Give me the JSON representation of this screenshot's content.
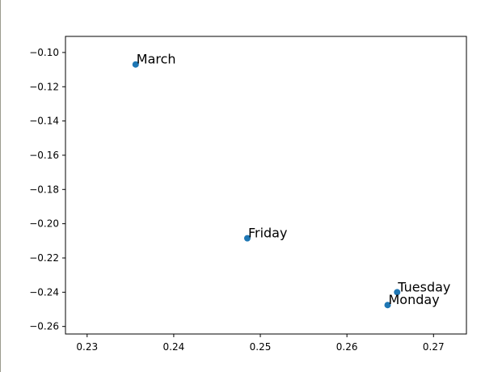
{
  "chart_data": {
    "type": "scatter",
    "title": "",
    "xlabel": "",
    "ylabel": "",
    "xlim": [
      0.2275,
      0.2738
    ],
    "ylim": [
      -0.2644,
      -0.0906
    ],
    "xticks": [
      "0.23",
      "0.24",
      "0.25",
      "0.26",
      "0.27"
    ],
    "yticks": [
      "−0.10",
      "−0.12",
      "−0.14",
      "−0.16",
      "−0.18",
      "−0.20",
      "−0.22",
      "−0.24",
      "−0.26"
    ],
    "grid": false,
    "marker_color": "#1f77b4",
    "points": [
      {
        "label": "March",
        "x": 0.2356,
        "y": -0.107
      },
      {
        "label": "Friday",
        "x": 0.2485,
        "y": -0.2085
      },
      {
        "label": "Tuesday",
        "x": 0.2658,
        "y": -0.24
      },
      {
        "label": "Monday",
        "x": 0.2647,
        "y": -0.2475
      }
    ]
  }
}
